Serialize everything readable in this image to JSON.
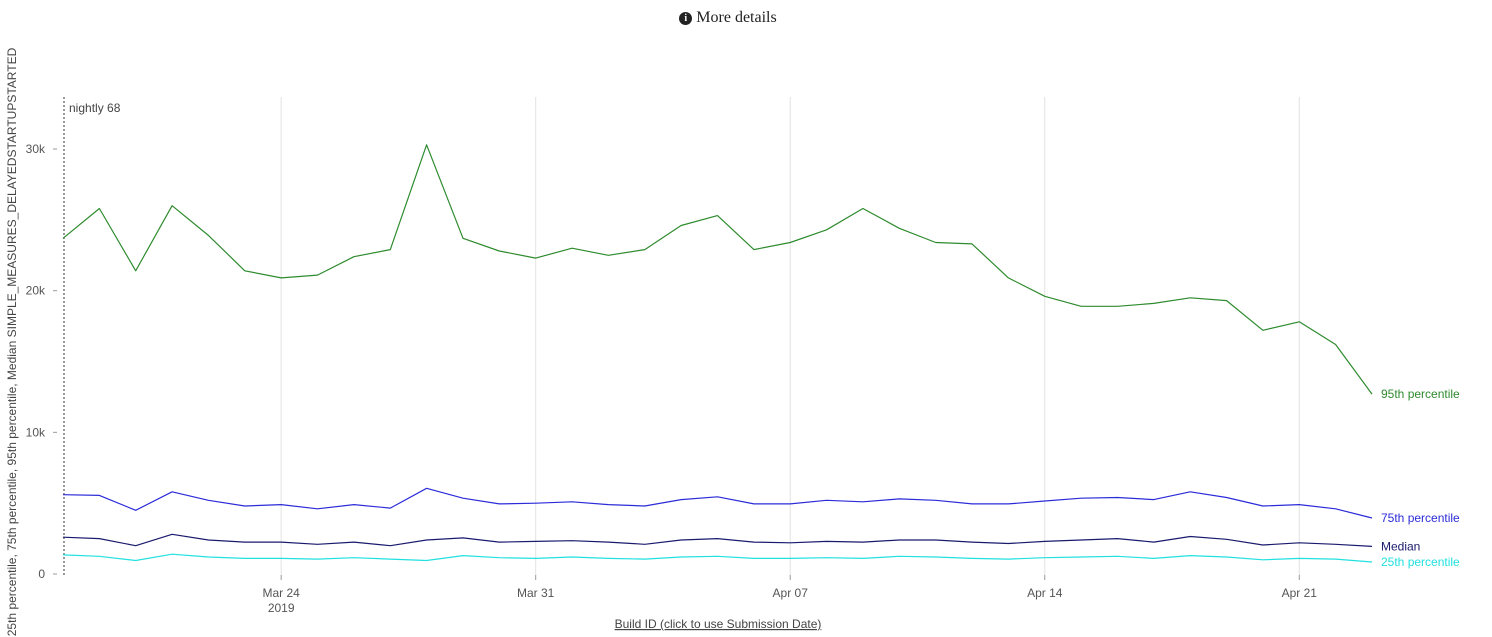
{
  "header": {
    "details_label": "More details",
    "icon": "info-circle-icon"
  },
  "chart_data": {
    "type": "line",
    "title": "",
    "xlabel": "Build ID (click to use Submission Date)",
    "ylabel": "25th percentile, 75th percentile, 95th percentile, Median SIMPLE_MEASURES_DELAYEDSTARTUPSTARTED",
    "ylim": [
      0,
      32000
    ],
    "xlim": [
      "2019-03-18",
      "2019-04-23"
    ],
    "grid": "vertical",
    "y_ticks": [
      {
        "value": 0,
        "label": "0"
      },
      {
        "value": 10000,
        "label": "10k"
      },
      {
        "value": 20000,
        "label": "20k"
      },
      {
        "value": 30000,
        "label": "30k"
      }
    ],
    "x_ticks": [
      {
        "date": "2019-03-24",
        "label": "Mar 24",
        "sublabel": "2019"
      },
      {
        "date": "2019-03-31",
        "label": "Mar 31",
        "sublabel": ""
      },
      {
        "date": "2019-04-07",
        "label": "Apr 07",
        "sublabel": ""
      },
      {
        "date": "2019-04-14",
        "label": "Apr 14",
        "sublabel": ""
      },
      {
        "date": "2019-04-21",
        "label": "Apr 21",
        "sublabel": ""
      }
    ],
    "x": [
      "2019-03-18",
      "2019-03-19",
      "2019-03-20",
      "2019-03-21",
      "2019-03-22",
      "2019-03-23",
      "2019-03-24",
      "2019-03-25",
      "2019-03-26",
      "2019-03-27",
      "2019-03-28",
      "2019-03-29",
      "2019-03-30",
      "2019-03-31",
      "2019-04-01",
      "2019-04-02",
      "2019-04-03",
      "2019-04-04",
      "2019-04-05",
      "2019-04-06",
      "2019-04-07",
      "2019-04-08",
      "2019-04-09",
      "2019-04-10",
      "2019-04-11",
      "2019-04-12",
      "2019-04-13",
      "2019-04-14",
      "2019-04-15",
      "2019-04-16",
      "2019-04-17",
      "2019-04-18",
      "2019-04-19",
      "2019-04-20",
      "2019-04-21",
      "2019-04-22",
      "2019-04-23"
    ],
    "series": [
      {
        "name": "95th percentile",
        "color": "#2e8b2e",
        "values": [
          23700,
          25800,
          21400,
          26000,
          23900,
          21400,
          20900,
          21100,
          22400,
          22900,
          30300,
          23700,
          22800,
          22300,
          23000,
          22500,
          22900,
          24600,
          25300,
          22900,
          23400,
          24300,
          25800,
          24400,
          23400,
          23300,
          20900,
          19600,
          18900,
          18900,
          19100,
          19500,
          19300,
          17200,
          17800,
          16200,
          12700
        ]
      },
      {
        "name": "75th percentile",
        "color": "#2b2bd9",
        "values": [
          5600,
          5550,
          4500,
          5800,
          5200,
          4800,
          4900,
          4600,
          4900,
          4650,
          6050,
          5350,
          4950,
          5000,
          5100,
          4900,
          4800,
          5250,
          5450,
          4950,
          4950,
          5200,
          5100,
          5300,
          5200,
          4950,
          4950,
          5150,
          5350,
          5400,
          5250,
          5800,
          5400,
          4800,
          4900,
          4600,
          3950
        ]
      },
      {
        "name": "Median",
        "color": "#1a1a6e",
        "values": [
          2600,
          2500,
          2000,
          2800,
          2400,
          2250,
          2250,
          2100,
          2250,
          2000,
          2400,
          2550,
          2250,
          2300,
          2350,
          2250,
          2100,
          2400,
          2500,
          2250,
          2200,
          2300,
          2250,
          2400,
          2400,
          2250,
          2150,
          2300,
          2400,
          2500,
          2250,
          2650,
          2450,
          2050,
          2200,
          2100,
          1950
        ]
      },
      {
        "name": "25th percentile",
        "color": "#22e0e0",
        "values": [
          1350,
          1250,
          950,
          1400,
          1200,
          1100,
          1100,
          1050,
          1150,
          1050,
          950,
          1300,
          1150,
          1100,
          1200,
          1100,
          1050,
          1200,
          1250,
          1100,
          1100,
          1150,
          1100,
          1250,
          1200,
          1100,
          1050,
          1150,
          1200,
          1250,
          1100,
          1300,
          1200,
          1000,
          1100,
          1050,
          850
        ]
      }
    ],
    "annotations": [
      {
        "date": "2019-03-18",
        "label": "nightly 68"
      }
    ]
  }
}
